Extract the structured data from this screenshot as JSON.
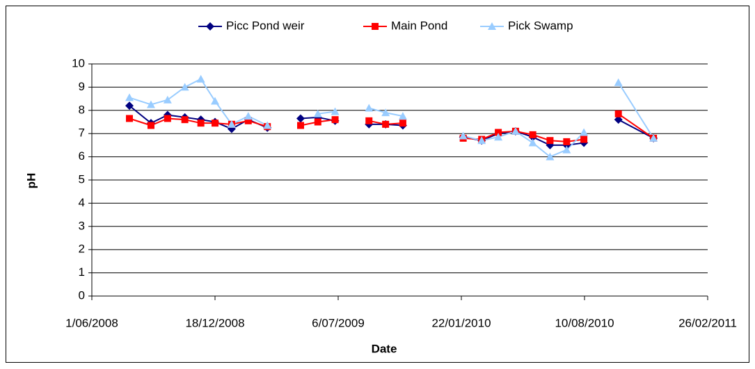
{
  "chart_data": {
    "type": "line",
    "x_label": "Date",
    "y_label": "pH",
    "x": [
      "2008-08-01",
      "2008-09-05",
      "2008-10-02",
      "2008-10-30",
      "2008-11-25",
      "2008-12-18",
      "2009-01-14",
      "2009-02-10",
      "2009-03-13",
      null,
      "2009-05-06",
      "2009-06-03",
      "2009-07-01",
      null,
      "2009-08-25",
      "2009-09-21",
      "2009-10-19",
      null,
      "2010-01-25",
      "2010-02-24",
      "2010-03-23",
      "2010-04-20",
      "2010-05-18",
      "2010-06-15",
      "2010-07-12",
      "2010-08-09",
      null,
      "2010-10-04",
      "2010-11-30"
    ],
    "series": [
      {
        "name": "Picc Pond weir",
        "color": "#000080",
        "marker": "diamond",
        "values": [
          8.2,
          7.45,
          7.8,
          7.7,
          7.6,
          7.5,
          7.2,
          7.6,
          7.25,
          null,
          7.65,
          7.7,
          7.55,
          null,
          7.4,
          7.4,
          7.35,
          null,
          6.85,
          6.7,
          7.0,
          7.1,
          6.85,
          6.5,
          6.5,
          6.6,
          null,
          7.6,
          6.8
        ]
      },
      {
        "name": "Main Pond",
        "color": "#ff0000",
        "marker": "square",
        "values": [
          7.65,
          7.35,
          7.65,
          7.6,
          7.45,
          7.45,
          7.4,
          7.55,
          7.3,
          null,
          7.35,
          7.5,
          7.6,
          null,
          7.55,
          7.4,
          7.45,
          null,
          6.8,
          6.75,
          7.05,
          7.1,
          6.95,
          6.7,
          6.65,
          6.75,
          null,
          7.85,
          6.8
        ]
      },
      {
        "name": "Pick Swamp",
        "color": "#99ccff",
        "marker": "triangle",
        "values": [
          8.55,
          8.25,
          8.45,
          9.0,
          9.35,
          8.4,
          7.4,
          7.75,
          7.35,
          null,
          null,
          7.85,
          7.95,
          null,
          8.1,
          7.9,
          7.75,
          null,
          6.9,
          6.7,
          6.85,
          7.1,
          6.6,
          6.0,
          6.3,
          7.05,
          null,
          9.2,
          6.8
        ]
      }
    ],
    "xlim": [
      "2008-06-01",
      "2011-02-26"
    ],
    "xticks": [
      {
        "value": "2008-06-01",
        "label": "1/06/2008"
      },
      {
        "value": "2008-12-18",
        "label": "18/12/2008"
      },
      {
        "value": "2009-07-06",
        "label": "6/07/2009"
      },
      {
        "value": "2010-01-22",
        "label": "22/01/2010"
      },
      {
        "value": "2010-08-10",
        "label": "10/08/2010"
      },
      {
        "value": "2011-02-26",
        "label": "26/02/2011"
      }
    ],
    "ylim": [
      0,
      10
    ],
    "yticks": [
      0,
      1,
      2,
      3,
      4,
      5,
      6,
      7,
      8,
      9,
      10
    ],
    "grid": true,
    "legend": "top"
  }
}
